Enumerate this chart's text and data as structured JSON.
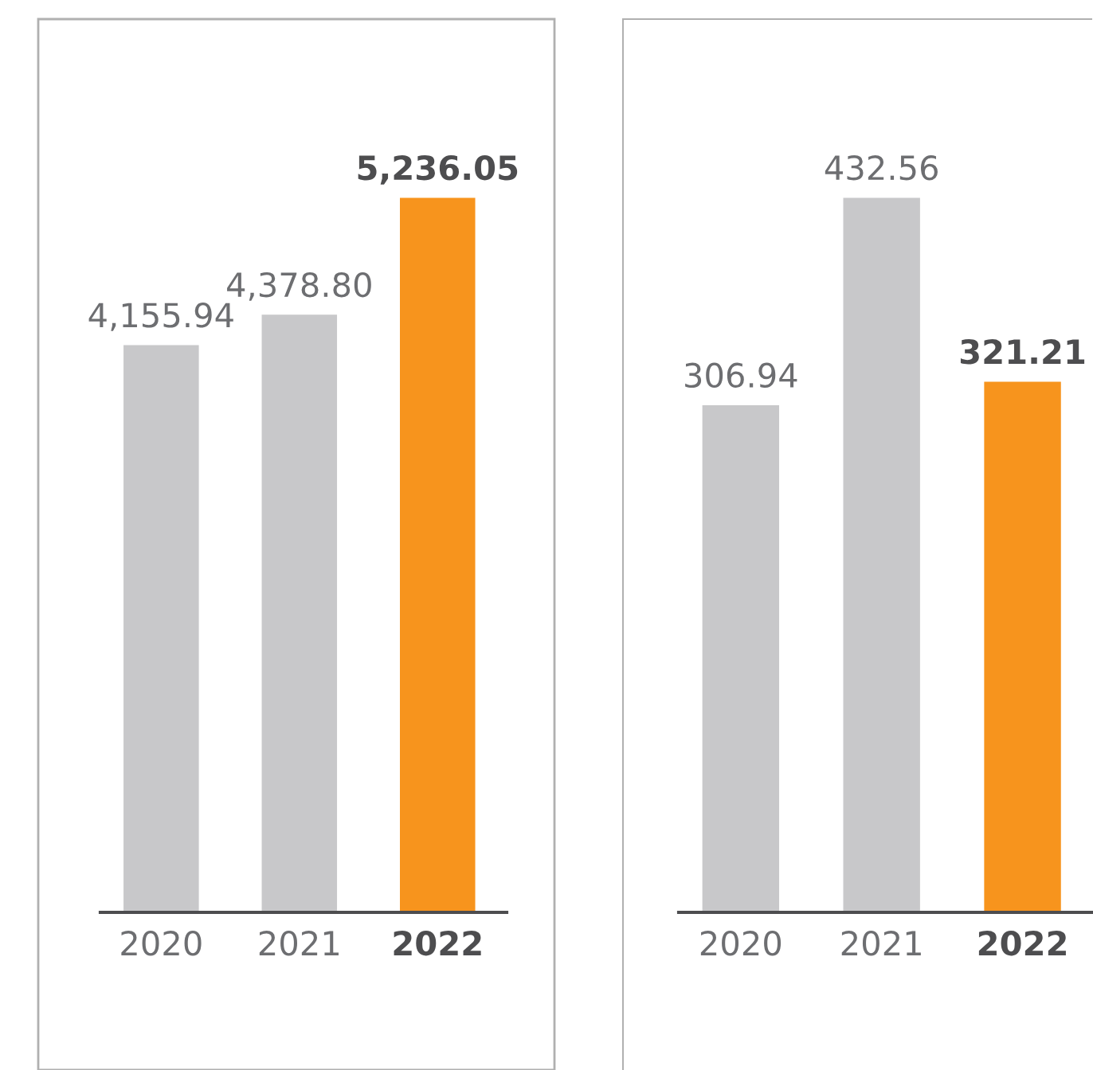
{
  "chart_data": [
    {
      "type": "bar",
      "categories": [
        "2020",
        "2021",
        "2022"
      ],
      "values": [
        4155.94,
        4378.8,
        5236.05
      ],
      "value_labels": [
        "4,155.94",
        "4,378.80",
        "5,236.05"
      ],
      "colors": [
        "#c8c8ca",
        "#c8c8ca",
        "#f7941d"
      ]
    },
    {
      "type": "bar",
      "categories": [
        "2020",
        "2021",
        "2022"
      ],
      "values": [
        306.94,
        432.56,
        321.21
      ],
      "value_labels": [
        "306.94",
        "432.56",
        "321.21"
      ],
      "colors": [
        "#c8c8ca",
        "#c8c8ca",
        "#f7941d"
      ]
    }
  ]
}
